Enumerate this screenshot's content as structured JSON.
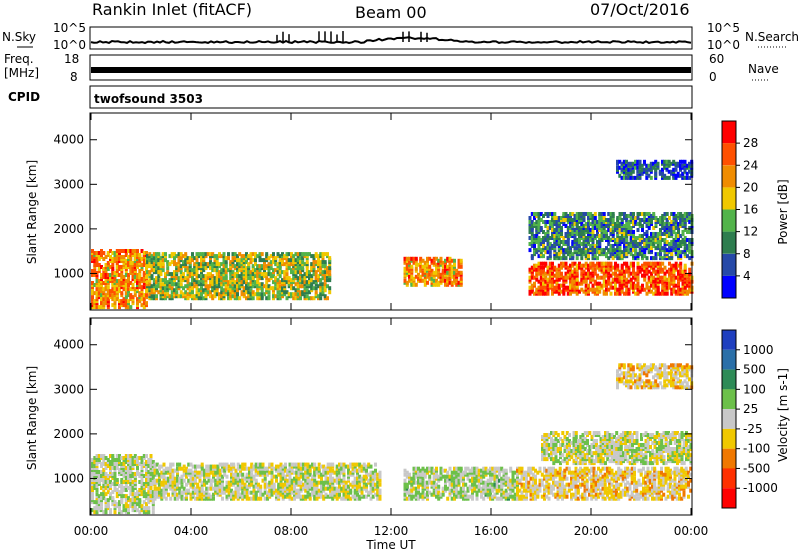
{
  "header": {
    "station": "Rankin Inlet (fitACF)",
    "beam": "Beam 00",
    "date": "07/Oct/2016"
  },
  "strips": {
    "nsky_label": "N.Sky",
    "nsky_ticks": [
      "10^5",
      "10^0"
    ],
    "nsearch_label": "N.Search",
    "nsearch_ticks": [
      "10^5",
      "10^0"
    ],
    "freq_label_1": "Freq.",
    "freq_label_2": "[MHz]",
    "freq_ticks": [
      "18",
      "8"
    ],
    "nave_label": "Nave",
    "nave_ticks": [
      "60",
      "0"
    ],
    "cpid_label": "CPID",
    "cpid_value": "twofsound 3503"
  },
  "power_panel": {
    "ylabel": "Slant Range [km]",
    "yticks": [
      "4000",
      "3000",
      "2000",
      "1000"
    ],
    "colorbar_label": "Power [dB]",
    "colorbar_ticks": [
      "28",
      "24",
      "20",
      "16",
      "12",
      "8",
      "4"
    ],
    "colors": [
      "#0000ff",
      "#2649a8",
      "#2e7d4f",
      "#52b34a",
      "#f0c800",
      "#f08c00",
      "#ff5000",
      "#ff0000"
    ]
  },
  "velocity_panel": {
    "ylabel": "Slant Range [km]",
    "yticks": [
      "4000",
      "3000",
      "2000",
      "1000"
    ],
    "colorbar_label": "Velocity [m s-1]",
    "colorbar_ticks": [
      "1000",
      "500",
      "100",
      "25",
      "-25",
      "-100",
      "-500",
      "-1000"
    ],
    "colors": [
      "#1f3fbf",
      "#2a6fa8",
      "#2e8b57",
      "#6cc04a",
      "#c8c8c8",
      "#f0c800",
      "#f07800",
      "#ff3000",
      "#ff0000"
    ]
  },
  "xaxis": {
    "xlabel": "Time UT",
    "xticks": [
      "00:00",
      "04:00",
      "08:00",
      "12:00",
      "16:00",
      "20:00",
      "00:00"
    ]
  },
  "chart_data": [
    {
      "type": "heatmap",
      "title": "Power",
      "xlabel": "",
      "ylabel": "Slant Range [km]",
      "x_unit": "hours UT",
      "xlim": [
        0,
        24
      ],
      "ylim": [
        180,
        4600
      ],
      "colorbar": {
        "label": "Power [dB]",
        "range": [
          0,
          32
        ]
      },
      "regions": [
        {
          "t": [
            0,
            2.2
          ],
          "r": [
            200,
            1500
          ],
          "level": 22
        },
        {
          "t": [
            2.2,
            9.5
          ],
          "r": [
            400,
            1400
          ],
          "level": 16
        },
        {
          "t": [
            12.5,
            14.8
          ],
          "r": [
            700,
            1300
          ],
          "level": 22
        },
        {
          "t": [
            17.5,
            24
          ],
          "r": [
            500,
            1200
          ],
          "level": 26
        },
        {
          "t": [
            17.5,
            24
          ],
          "r": [
            1300,
            2300
          ],
          "level": 10
        },
        {
          "t": [
            21,
            24
          ],
          "r": [
            3100,
            3500
          ],
          "level": 6
        }
      ]
    },
    {
      "type": "heatmap",
      "title": "Velocity",
      "xlabel": "Time UT",
      "ylabel": "Slant Range [km]",
      "x_unit": "hours UT",
      "xlim": [
        0,
        24
      ],
      "ylim": [
        180,
        4600
      ],
      "colorbar": {
        "label": "Velocity [m s-1]",
        "range": [
          -1000,
          1000
        ]
      },
      "regions": [
        {
          "t": [
            0,
            2.5
          ],
          "r": [
            200,
            1500
          ],
          "level": 60
        },
        {
          "t": [
            2.5,
            11.5
          ],
          "r": [
            500,
            1300
          ],
          "level": 0
        },
        {
          "t": [
            12.5,
            17
          ],
          "r": [
            500,
            1200
          ],
          "level": 80
        },
        {
          "t": [
            17,
            24
          ],
          "r": [
            500,
            1200
          ],
          "level": -150
        },
        {
          "t": [
            18,
            24
          ],
          "r": [
            1300,
            2000
          ],
          "level": 0
        },
        {
          "t": [
            21,
            24
          ],
          "r": [
            3000,
            3500
          ],
          "level": -150
        }
      ]
    }
  ]
}
